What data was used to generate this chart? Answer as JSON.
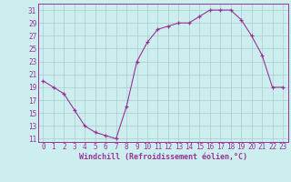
{
  "x": [
    0,
    1,
    2,
    3,
    4,
    5,
    6,
    7,
    8,
    9,
    10,
    11,
    12,
    13,
    14,
    15,
    16,
    17,
    18,
    19,
    20,
    21,
    22,
    23
  ],
  "y": [
    20,
    19,
    18,
    15.5,
    13,
    12,
    11.5,
    11,
    16,
    23,
    26,
    28,
    28.5,
    29,
    29,
    30,
    31,
    31,
    31,
    29.5,
    27,
    24,
    19,
    19
  ],
  "line_color": "#993399",
  "marker": "+",
  "marker_color": "#993399",
  "bg_color": "#cceeee",
  "grid_color": "#aacccc",
  "xlabel": "Windchill (Refroidissement éolien,°C)",
  "ylabel": "",
  "xlim": [
    -0.5,
    23.5
  ],
  "ylim": [
    10.5,
    32
  ],
  "yticks": [
    11,
    13,
    15,
    17,
    19,
    21,
    23,
    25,
    27,
    29,
    31
  ],
  "xticks": [
    0,
    1,
    2,
    3,
    4,
    5,
    6,
    7,
    8,
    9,
    10,
    11,
    12,
    13,
    14,
    15,
    16,
    17,
    18,
    19,
    20,
    21,
    22,
    23
  ],
  "label_color": "#993399",
  "tick_color": "#993399",
  "font_size": 5.5,
  "xlabel_font_size": 6.0,
  "marker_size": 3,
  "linewidth": 0.8,
  "markeredgewidth": 0.9
}
